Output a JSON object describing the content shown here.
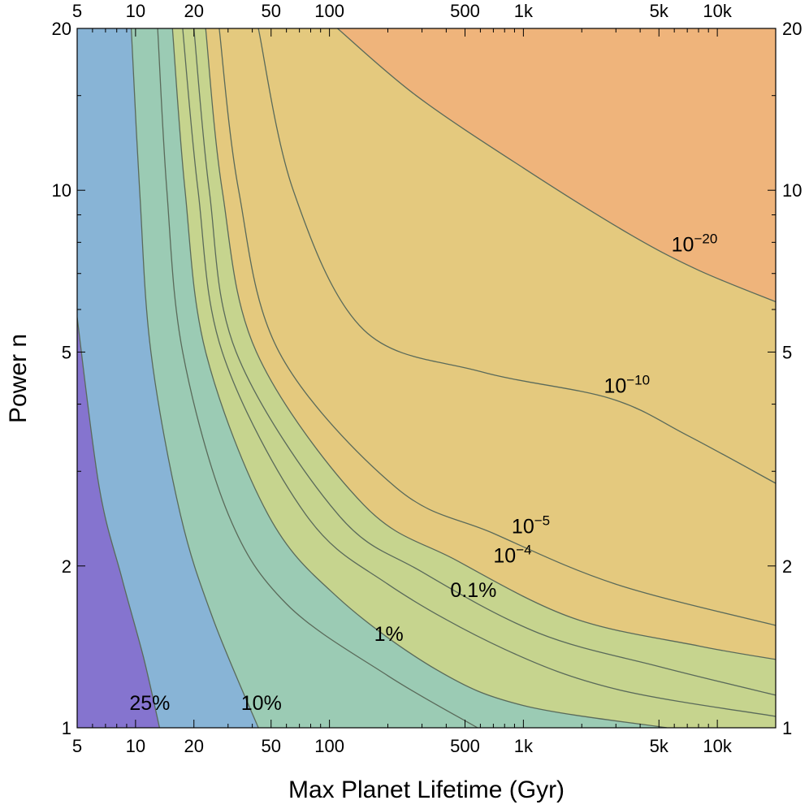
{
  "chart_data": {
    "type": "contour",
    "xlabel": "Max Planet Lifetime (Gyr)",
    "ylabel": "Power n",
    "x_scale": "log",
    "y_scale": "log",
    "xlim": [
      5,
      20000
    ],
    "ylim": [
      1,
      20
    ],
    "x_ticks": [
      {
        "value": 5,
        "label": "5"
      },
      {
        "value": 10,
        "label": "10"
      },
      {
        "value": 20,
        "label": "20"
      },
      {
        "value": 50,
        "label": "50"
      },
      {
        "value": 100,
        "label": "100"
      },
      {
        "value": 500,
        "label": "500"
      },
      {
        "value": 1000,
        "label": "1k"
      },
      {
        "value": 5000,
        "label": "5k"
      },
      {
        "value": 10000,
        "label": "10k"
      }
    ],
    "y_ticks": [
      {
        "value": 1,
        "label": "1"
      },
      {
        "value": 2,
        "label": "2"
      },
      {
        "value": 5,
        "label": "5"
      },
      {
        "value": 10,
        "label": "10"
      },
      {
        "value": 20,
        "label": "20"
      }
    ],
    "region_colors": [
      "#8574cf",
      "#88b4d6",
      "#9bcbb4",
      "#c6d48e",
      "#e4c97e",
      "#efb47b"
    ],
    "contours": [
      {
        "label": "25%",
        "label_base": "25%",
        "label_exp": "",
        "label_at": [
          9.3,
          1.08
        ],
        "points": [
          [
            5,
            5.8
          ],
          [
            6.5,
            2.8
          ],
          [
            8.5,
            1.9
          ],
          [
            11,
            1.35
          ],
          [
            13.3,
            1
          ]
        ]
      },
      {
        "label": "10%",
        "label_base": "10%",
        "label_exp": "",
        "label_at": [
          35,
          1.08
        ],
        "points": [
          [
            9.5,
            20
          ],
          [
            10.5,
            10
          ],
          [
            12,
            5
          ],
          [
            17,
            2.5
          ],
          [
            25,
            1.6
          ],
          [
            43,
            1
          ]
        ]
      },
      {
        "label": "",
        "label_base": "",
        "label_exp": "",
        "label_at": null,
        "points": [
          [
            13,
            20
          ],
          [
            14.5,
            10
          ],
          [
            17.5,
            5
          ],
          [
            30,
            2.5
          ],
          [
            60,
            1.7
          ],
          [
            200,
            1.25
          ],
          [
            580,
            1
          ]
        ]
      },
      {
        "label": "1%",
        "label_base": "1%",
        "label_exp": "",
        "label_at": [
          170,
          1.45
        ],
        "points": [
          [
            15.5,
            20
          ],
          [
            18,
            10
          ],
          [
            23,
            5
          ],
          [
            48,
            2.5
          ],
          [
            110,
            1.75
          ],
          [
            360,
            1.28
          ],
          [
            1000,
            1.1
          ],
          [
            5500,
            1
          ]
        ]
      },
      {
        "label": "0.1%",
        "label_base": "0.1%",
        "label_exp": "",
        "label_at": [
          420,
          1.75
        ],
        "points": [
          [
            17.5,
            20
          ],
          [
            21,
            10
          ],
          [
            28,
            5
          ],
          [
            75,
            2.5
          ],
          [
            200,
            1.85
          ],
          [
            800,
            1.4
          ],
          [
            3000,
            1.18
          ],
          [
            20000,
            1.05
          ]
        ]
      },
      {
        "label": "",
        "label_base": "",
        "label_exp": "",
        "label_at": null,
        "points": [
          [
            20,
            20
          ],
          [
            24,
            10
          ],
          [
            33,
            5
          ],
          [
            110,
            2.5
          ],
          [
            300,
            1.95
          ],
          [
            1200,
            1.5
          ],
          [
            5000,
            1.3
          ],
          [
            20000,
            1.15
          ]
        ]
      },
      {
        "label": "10^-4",
        "label_base": "10",
        "label_exp": "−4",
        "label_at": [
          700,
          2.03
        ],
        "points": [
          [
            23,
            20
          ],
          [
            28,
            10
          ],
          [
            42,
            5
          ],
          [
            150,
            2.6
          ],
          [
            450,
            2.05
          ],
          [
            1800,
            1.6
          ],
          [
            8000,
            1.42
          ],
          [
            20000,
            1.34
          ]
        ]
      },
      {
        "label": "10^-5",
        "label_base": "10",
        "label_exp": "−5",
        "label_at": [
          870,
          2.3
        ],
        "points": [
          [
            27,
            20
          ],
          [
            34,
            10
          ],
          [
            55,
            5
          ],
          [
            220,
            2.8
          ],
          [
            700,
            2.3
          ],
          [
            3000,
            1.85
          ],
          [
            20000,
            1.55
          ]
        ]
      },
      {
        "label": "10^-10",
        "label_base": "10",
        "label_exp": "−10",
        "label_at": [
          2600,
          4.2
        ],
        "points": [
          [
            43,
            20
          ],
          [
            65,
            10
          ],
          [
            150,
            5.5
          ],
          [
            600,
            4.6
          ],
          [
            2800,
            4.1
          ],
          [
            7000,
            3.5
          ],
          [
            20000,
            2.85
          ]
        ]
      },
      {
        "label": "10^-20",
        "label_base": "10",
        "label_exp": "−20",
        "label_at": [
          5800,
          7.7
        ],
        "points": [
          [
            110,
            20
          ],
          [
            280,
            15
          ],
          [
            1000,
            11
          ],
          [
            3500,
            8.3
          ],
          [
            8000,
            7.1
          ],
          [
            20000,
            6.2
          ]
        ]
      }
    ]
  }
}
